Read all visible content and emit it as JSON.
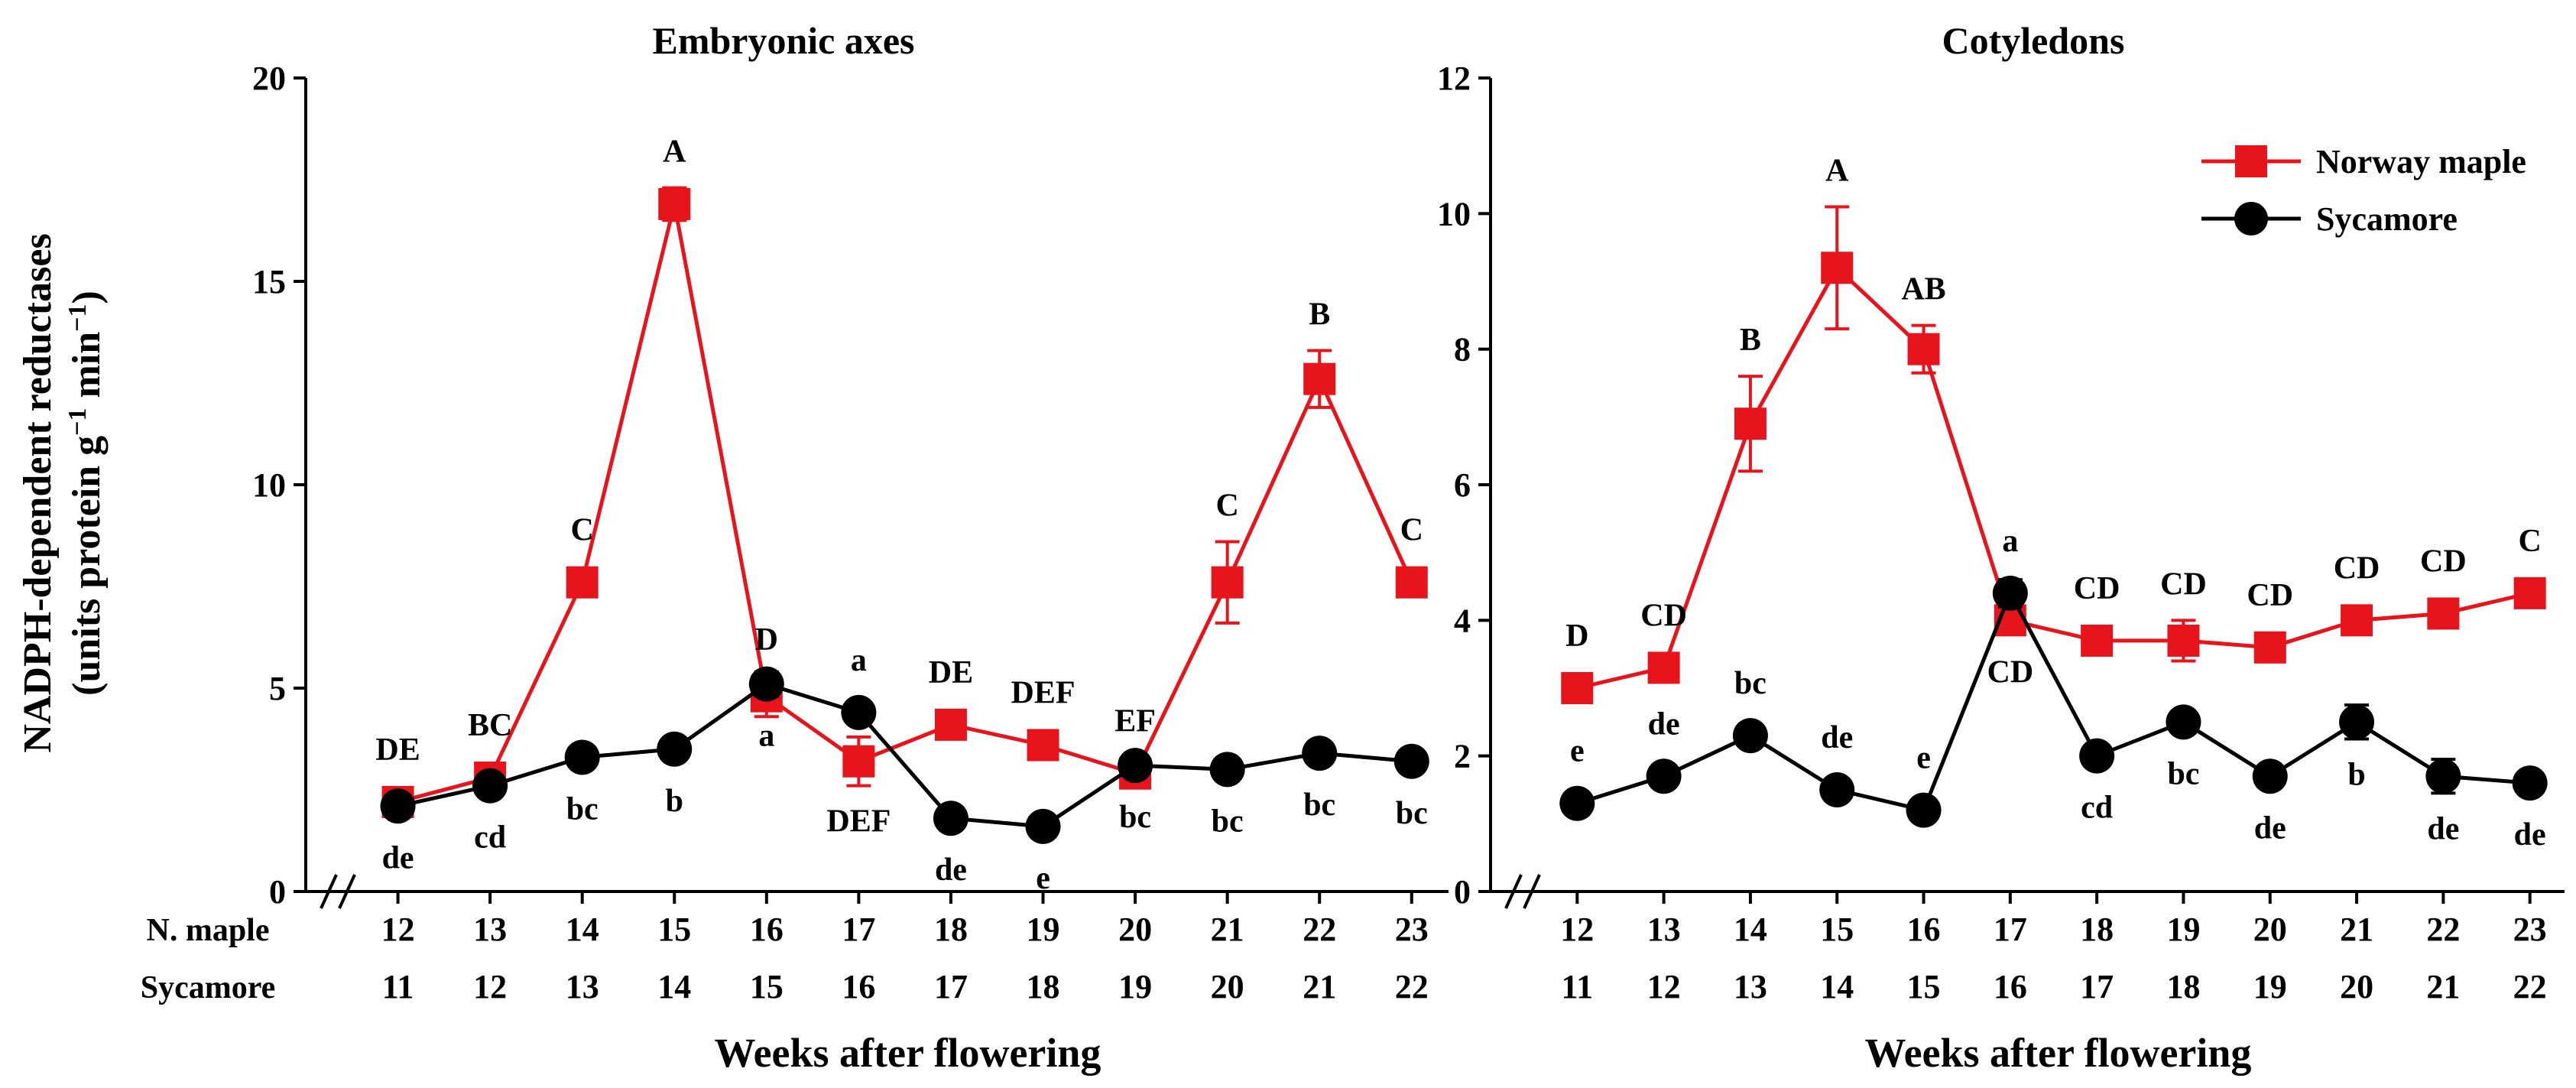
{
  "colors": {
    "norway": "#e8141c",
    "sycamore": "#000000",
    "axis": "#000000"
  },
  "common": {
    "ylabel_line1": "NADPH-dependent reductases",
    "ylabel_line2": "(units protein g",
    "ylabel_line2_sup": "−1",
    "ylabel_line2_mid": " min",
    "ylabel_line2_sup2": "−1",
    "ylabel_line2_end": ")",
    "xlabel": "Weeks after flowering",
    "row_label_norway": "N. maple",
    "row_label_sycamore": "Sycamore",
    "break_mark": "//"
  },
  "legend": {
    "norway": "Norway maple",
    "sycamore": "Sycamore",
    "placement": "top-right of Cotyledons panel"
  },
  "chart_data": [
    {
      "type": "line",
      "title": "Embryonic axes",
      "ylabel": "NADPH-dependent reductases (units protein g−1 min−1)",
      "xlabel": "Weeks after flowering",
      "ylim": [
        0,
        20
      ],
      "yticks": [
        0,
        5,
        10,
        15,
        20
      ],
      "positions": [
        1,
        2,
        3,
        4,
        5,
        6,
        7,
        8,
        9,
        10,
        11,
        12
      ],
      "xlim": [
        0,
        12.4
      ],
      "categories_norway": [
        "12",
        "13",
        "14",
        "15",
        "16",
        "17",
        "18",
        "19",
        "20",
        "21",
        "22",
        "23"
      ],
      "categories_sycamore": [
        "11",
        "12",
        "13",
        "14",
        "15",
        "16",
        "17",
        "18",
        "19",
        "20",
        "21",
        "22"
      ],
      "series": [
        {
          "name": "Norway maple",
          "color": "#e8141c",
          "marker": "square",
          "values": [
            2.2,
            2.8,
            7.6,
            16.9,
            4.8,
            3.2,
            4.1,
            3.6,
            2.9,
            7.6,
            12.6,
            7.6
          ],
          "errors": [
            0.2,
            0.2,
            0.3,
            0.4,
            0.5,
            0.6,
            0.2,
            0.2,
            0.3,
            1.0,
            0.7,
            0.2
          ],
          "letters": [
            "DE",
            "BC",
            "C",
            "A",
            "D",
            "DEF",
            "DE",
            "DEF",
            "EF",
            "C",
            "B",
            "C"
          ],
          "letter_side": [
            "above",
            "above",
            "above",
            "above",
            "above",
            "below",
            "above",
            "above",
            "above",
            "above",
            "above",
            "above"
          ]
        },
        {
          "name": "Sycamore",
          "color": "#000000",
          "marker": "circle",
          "values": [
            2.1,
            2.6,
            3.3,
            3.5,
            5.1,
            4.4,
            1.8,
            1.6,
            3.1,
            3.0,
            3.4,
            3.2
          ],
          "errors": [
            0.2,
            0.2,
            0.2,
            0.2,
            0.3,
            0.2,
            0.2,
            0.2,
            0.2,
            0.2,
            0.2,
            0.2
          ],
          "letters": [
            "de",
            "cd",
            "bc",
            "b",
            "a",
            "a",
            "de",
            "e",
            "bc",
            "bc",
            "bc",
            "bc"
          ],
          "letter_side": [
            "below",
            "below",
            "below",
            "below",
            "below",
            "above",
            "below",
            "below",
            "below",
            "below",
            "below",
            "below"
          ]
        }
      ]
    },
    {
      "type": "line",
      "title": "Cotyledons",
      "ylabel": "",
      "xlabel": "Weeks after flowering",
      "ylim": [
        0,
        12
      ],
      "yticks": [
        0,
        2,
        4,
        6,
        8,
        10,
        12
      ],
      "positions": [
        1,
        2,
        3,
        4,
        5,
        6,
        7,
        8,
        9,
        10,
        11,
        12
      ],
      "xlim": [
        0,
        12.4
      ],
      "categories_norway": [
        "12",
        "13",
        "14",
        "15",
        "16",
        "17",
        "18",
        "19",
        "20",
        "21",
        "22",
        "23"
      ],
      "categories_sycamore": [
        "11",
        "12",
        "13",
        "14",
        "15",
        "16",
        "17",
        "18",
        "19",
        "20",
        "21",
        "22"
      ],
      "series": [
        {
          "name": "Norway maple",
          "color": "#e8141c",
          "marker": "square",
          "values": [
            3.0,
            3.3,
            6.9,
            9.2,
            8.0,
            4.0,
            3.7,
            3.7,
            3.6,
            4.0,
            4.1,
            4.4
          ],
          "errors": [
            0.15,
            0.15,
            0.7,
            0.9,
            0.35,
            0.15,
            0.15,
            0.3,
            0.15,
            0.15,
            0.15,
            0.15
          ],
          "letters": [
            "D",
            "CD",
            "B",
            "A",
            "AB",
            "CD",
            "CD",
            "CD",
            "CD",
            "CD",
            "CD",
            "C"
          ],
          "letter_side": [
            "above",
            "above",
            "above",
            "above",
            "above",
            "below",
            "above",
            "above",
            "above",
            "above",
            "above",
            "above"
          ]
        },
        {
          "name": "Sycamore",
          "color": "#000000",
          "marker": "circle",
          "values": [
            1.3,
            1.7,
            2.3,
            1.5,
            1.2,
            4.4,
            2.0,
            2.5,
            1.7,
            2.5,
            1.7,
            1.6
          ],
          "errors": [
            0.1,
            0.1,
            0.1,
            0.1,
            0.1,
            0.2,
            0.1,
            0.1,
            0.1,
            0.25,
            0.25,
            0.1
          ],
          "letters": [
            "e",
            "de",
            "bc",
            "de",
            "e",
            "a",
            "cd",
            "bc",
            "de",
            "b",
            "de",
            "de"
          ],
          "letter_side": [
            "above",
            "above",
            "above",
            "above",
            "above",
            "above",
            "below",
            "below",
            "below",
            "below",
            "below",
            "below"
          ]
        }
      ]
    }
  ]
}
